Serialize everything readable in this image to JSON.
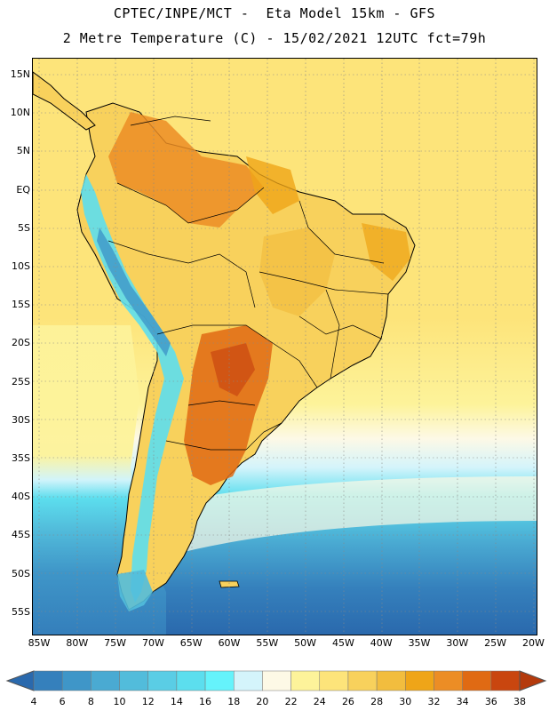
{
  "title": {
    "line1": "CPTEC/INPE/MCT -  Eta Model 15km - GFS",
    "line2": "2 Metre Temperature (C) - 15/02/2021 12UTC fct=79h"
  },
  "lat_labels": [
    "15N",
    "10N",
    "5N",
    "EQ",
    "5S",
    "10S",
    "15S",
    "20S",
    "25S",
    "30S",
    "35S",
    "40S",
    "45S",
    "50S",
    "55S"
  ],
  "lon_labels": [
    "85W",
    "80W",
    "75W",
    "70W",
    "65W",
    "60W",
    "55W",
    "50W",
    "45W",
    "40W",
    "35W",
    "30W",
    "25W",
    "20W"
  ],
  "colorbar": {
    "labels": [
      "4",
      "6",
      "8",
      "10",
      "12",
      "14",
      "16",
      "18",
      "20",
      "22",
      "24",
      "26",
      "28",
      "30",
      "32",
      "34",
      "36",
      "38"
    ],
    "colors": [
      "#2a69ad",
      "#3580bc",
      "#3f96c8",
      "#4aaad2",
      "#52bcdb",
      "#5acde5",
      "#5cdeee",
      "#65f3fb",
      "#d4f4fb",
      "#fdf9e6",
      "#fdf39a",
      "#fde47a",
      "#f8d15c",
      "#f2bd3e",
      "#efa518",
      "#ec8d25",
      "#e06a13",
      "#c9460f",
      "#b43a0c"
    ]
  }
}
